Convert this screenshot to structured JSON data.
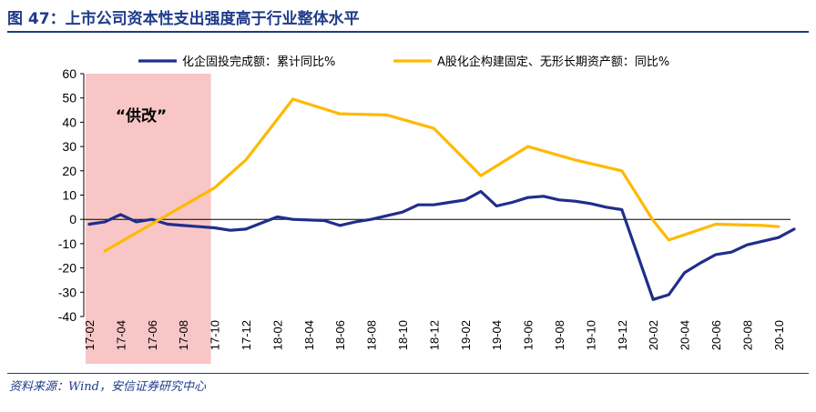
{
  "header": {
    "title": "图 47：上市公司资本性支出强度高于行业整体水平"
  },
  "footer": {
    "source": "资料来源：Wind，安信证券研究中心"
  },
  "colors": {
    "series1": "#1f2e8c",
    "series2": "#ffb900",
    "highlight": "#f8c6c6",
    "title": "#1f3b8a"
  },
  "chart_data": {
    "type": "line",
    "title": "",
    "xlabel": "",
    "ylabel": "",
    "ylim": [
      -40,
      60
    ],
    "yticks": [
      60,
      50,
      40,
      30,
      20,
      10,
      0,
      -10,
      -20,
      -30,
      -40
    ],
    "tick_labels": [
      "17-02",
      "17-04",
      "17-06",
      "17-08",
      "17-10",
      "17-12",
      "18-02",
      "18-04",
      "18-06",
      "18-08",
      "18-10",
      "18-12",
      "19-02",
      "19-04",
      "19-06",
      "19-08",
      "19-10",
      "19-12",
      "20-02",
      "20-04",
      "20-06",
      "20-08",
      "20-10"
    ],
    "x": [
      "17-02",
      "17-03",
      "17-04",
      "17-05",
      "17-06",
      "17-07",
      "17-08",
      "17-09",
      "17-10",
      "17-11",
      "17-12",
      "18-01",
      "18-02",
      "18-03",
      "18-04",
      "18-05",
      "18-06",
      "18-07",
      "18-08",
      "18-09",
      "18-10",
      "18-11",
      "18-12",
      "19-01",
      "19-02",
      "19-03",
      "19-04",
      "19-05",
      "19-06",
      "19-07",
      "19-08",
      "19-09",
      "19-10",
      "19-11",
      "19-12",
      "20-01",
      "20-02",
      "20-03",
      "20-04",
      "20-05",
      "20-06",
      "20-07",
      "20-08",
      "20-09",
      "20-10",
      "20-11"
    ],
    "series": [
      {
        "name": "化企固投完成额：累计同比%",
        "values": [
          -2,
          -1,
          2,
          -1,
          0,
          -2,
          -2.5,
          -3,
          -3.5,
          -4.5,
          -4,
          null,
          1,
          0,
          null,
          -0.5,
          -2.5,
          -1,
          0,
          1.5,
          3,
          6,
          6,
          7,
          8,
          11.5,
          5.5,
          7,
          9,
          9.5,
          8,
          7.5,
          6.5,
          5,
          4,
          null,
          -33,
          -31,
          -22,
          -18,
          -14.5,
          -13.5,
          -10.5,
          -9,
          -7.5,
          -4
        ]
      },
      {
        "name": "A股化企构建固定、无形长期资产额：同比%",
        "values": [
          null,
          -13,
          null,
          null,
          null,
          null,
          null,
          null,
          13,
          null,
          24.5,
          null,
          null,
          49.5,
          null,
          null,
          43.5,
          null,
          null,
          43,
          null,
          null,
          37.5,
          null,
          null,
          18,
          null,
          null,
          30,
          null,
          null,
          24.5,
          null,
          null,
          20,
          null,
          -0.5,
          -8.5,
          null,
          null,
          -2,
          null,
          null,
          -2.5,
          -3,
          null
        ]
      }
    ],
    "highlight_region": {
      "from": "17-02",
      "to": "17-10",
      "label": "“供改”"
    },
    "legend_position": "top"
  }
}
